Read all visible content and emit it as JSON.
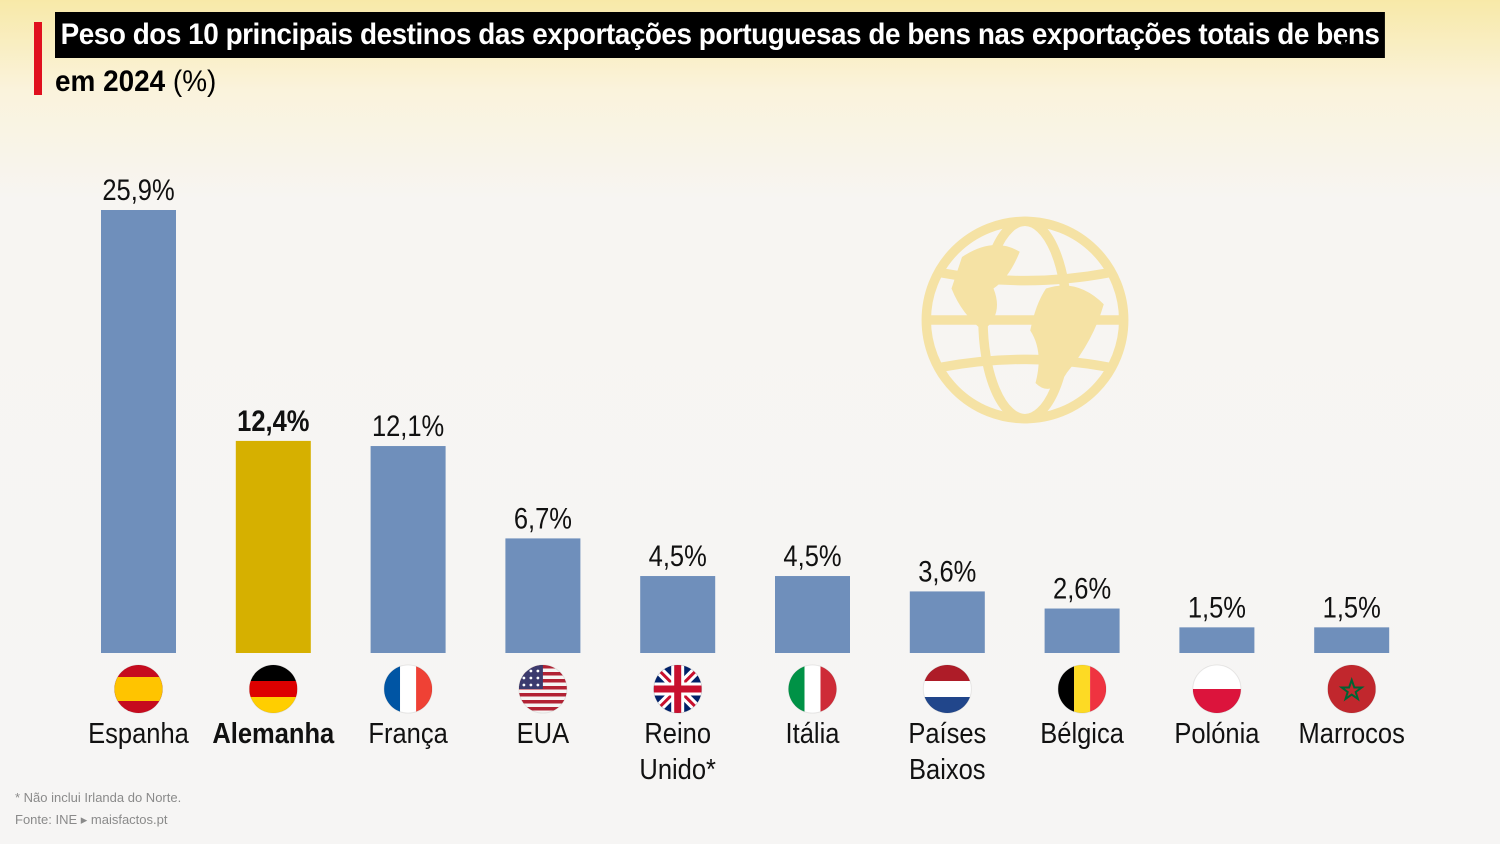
{
  "header": {
    "title_line1": "Peso dos 10 principais destinos das exportações portuguesas de bens nas exportações totais de bens",
    "title_comma": ",",
    "title_line2_bold": "em 2024",
    "title_line2_rest": "(%)"
  },
  "footer": {
    "note": "* Não inclui Irlanda do Norte.",
    "source": "Fonte: INE ▸ maisfactos.pt"
  },
  "colors": {
    "bar": "#6f8fbb",
    "highlight": "#d6b000",
    "accent": "#e0101e"
  },
  "chart_data": {
    "type": "bar",
    "title": "Peso dos 10 principais destinos das exportações portuguesas de bens nas exportações totais de bens, em 2024 (%)",
    "categories": [
      "Espanha",
      "Alemanha",
      "França",
      "EUA",
      "Reino Unido*",
      "Itália",
      "Países Baixos",
      "Bélgica",
      "Polónia",
      "Marrocos"
    ],
    "category_lines": [
      [
        "Espanha"
      ],
      [
        "Alemanha"
      ],
      [
        "França"
      ],
      [
        "EUA"
      ],
      [
        "Reino",
        "Unido*"
      ],
      [
        "Itália"
      ],
      [
        "Países",
        "Baixos"
      ],
      [
        "Bélgica"
      ],
      [
        "Polónia"
      ],
      [
        "Marrocos"
      ]
    ],
    "values": [
      25.9,
      12.4,
      12.1,
      6.7,
      4.5,
      4.5,
      3.6,
      2.6,
      1.5,
      1.5
    ],
    "value_labels": [
      "25,9%",
      "12,4%",
      "12,1%",
      "6,7%",
      "4,5%",
      "4,5%",
      "3,6%",
      "2,6%",
      "1,5%",
      "1,5%"
    ],
    "highlight_index": 1,
    "flag_icons": [
      "spain-flag-icon",
      "germany-flag-icon",
      "france-flag-icon",
      "usa-flag-icon",
      "uk-flag-icon",
      "italy-flag-icon",
      "netherlands-flag-icon",
      "belgium-flag-icon",
      "poland-flag-icon",
      "morocco-flag-icon"
    ],
    "ylim": [
      0,
      25.9
    ],
    "grid": false
  }
}
